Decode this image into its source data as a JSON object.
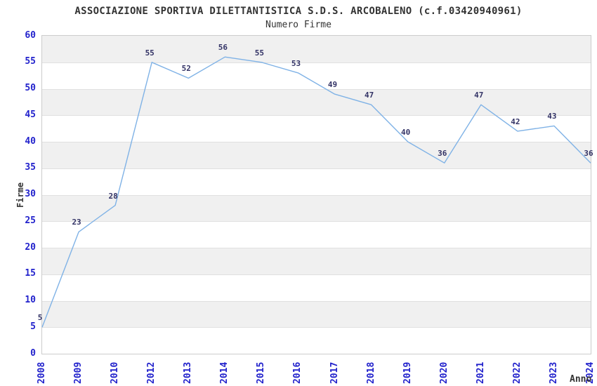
{
  "chart_data": {
    "type": "line",
    "title": "ASSOCIAZIONE SPORTIVA DILETTANTISTICA S.D.S. ARCOBALENO (c.f.03420940961)",
    "subtitle": "Numero Firme",
    "xlabel": "Anno",
    "ylabel": "Firme",
    "categories": [
      "2008",
      "2009",
      "2010",
      "2012",
      "2013",
      "2014",
      "2015",
      "2016",
      "2017",
      "2018",
      "2019",
      "2020",
      "2021",
      "2022",
      "2023",
      "2024"
    ],
    "values": [
      5,
      23,
      28,
      55,
      52,
      56,
      55,
      53,
      49,
      47,
      40,
      36,
      47,
      42,
      43,
      36
    ],
    "ylim": [
      0,
      60
    ],
    "ytick_step": 5,
    "grid": "alternating-horizontal-bands",
    "legend": "none",
    "colors": {
      "line": "#7FB2E6",
      "tick_label": "#2222CC",
      "value_label": "#333366",
      "title": "#333333",
      "band": "#F0F0F0",
      "gridline": "#E0E0E0",
      "border": "#CCCCCC",
      "background": "#FFFFFF"
    }
  }
}
